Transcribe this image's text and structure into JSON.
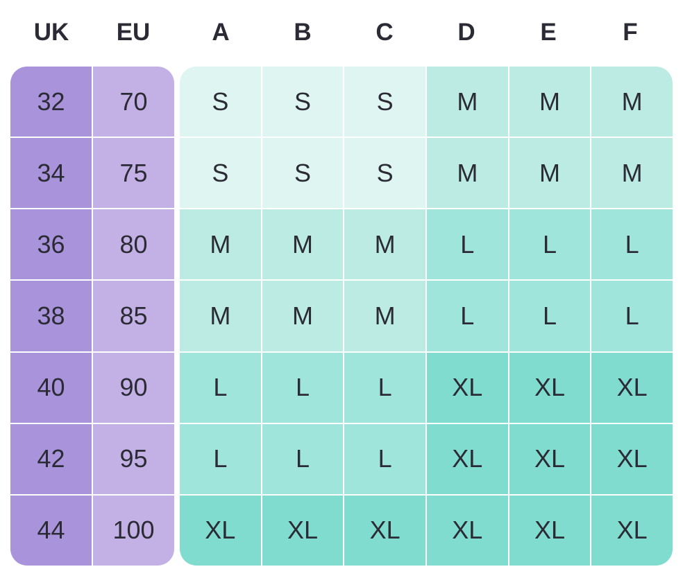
{
  "headers": {
    "uk": "UK",
    "eu": "EU",
    "cups": [
      "A",
      "B",
      "C",
      "D",
      "E",
      "F"
    ]
  },
  "rows": [
    {
      "uk": "32",
      "eu": "70",
      "sizes": [
        "S",
        "S",
        "S",
        "M",
        "M",
        "M"
      ]
    },
    {
      "uk": "34",
      "eu": "75",
      "sizes": [
        "S",
        "S",
        "S",
        "M",
        "M",
        "M"
      ]
    },
    {
      "uk": "36",
      "eu": "80",
      "sizes": [
        "M",
        "M",
        "M",
        "L",
        "L",
        "L"
      ]
    },
    {
      "uk": "38",
      "eu": "85",
      "sizes": [
        "M",
        "M",
        "M",
        "L",
        "L",
        "L"
      ]
    },
    {
      "uk": "40",
      "eu": "90",
      "sizes": [
        "L",
        "L",
        "L",
        "XL",
        "XL",
        "XL"
      ]
    },
    {
      "uk": "42",
      "eu": "95",
      "sizes": [
        "L",
        "L",
        "L",
        "XL",
        "XL",
        "XL"
      ]
    },
    {
      "uk": "44",
      "eu": "100",
      "sizes": [
        "XL",
        "XL",
        "XL",
        "XL",
        "XL",
        "XL"
      ]
    }
  ],
  "colors": {
    "uk_column": "#a994dc",
    "eu_column": "#c3b1e5",
    "size_S": "#def5f2",
    "size_M": "#bcebe4",
    "size_L": "#a0e5dc",
    "size_XL": "#80dccf"
  }
}
